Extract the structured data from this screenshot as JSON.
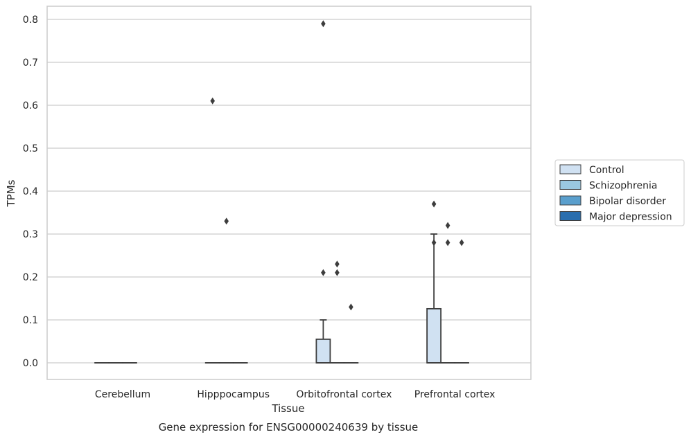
{
  "chart_data": {
    "type": "box",
    "title": "",
    "caption": "Gene expression for ENSG00000240639 by tissue",
    "xlabel": "Tissue",
    "ylabel": "TPMs",
    "categories": [
      "Cerebellum",
      "Hipppocampus",
      "Orbitofrontal cortex",
      "Prefrontal cortex"
    ],
    "ylim": [
      -0.04,
      0.83
    ],
    "yticks": [
      "0.0",
      "0.1",
      "0.2",
      "0.3",
      "0.4",
      "0.5",
      "0.6",
      "0.7",
      "0.8"
    ],
    "grid": true,
    "legend_position": "right",
    "series": [
      {
        "name": "Control",
        "color": "#d0e1f2",
        "boxes": [
          {
            "category": "Cerebellum",
            "q1": 0,
            "median": 0,
            "q3": 0,
            "whisker_low": 0,
            "whisker_high": 0,
            "outliers": []
          },
          {
            "category": "Hipppocampus",
            "q1": 0,
            "median": 0,
            "q3": 0,
            "whisker_low": 0,
            "whisker_high": 0,
            "outliers": [
              0.61
            ]
          },
          {
            "category": "Orbitofrontal cortex",
            "q1": 0,
            "median": 0,
            "q3": 0.055,
            "whisker_low": 0,
            "whisker_high": 0.1,
            "outliers": [
              0.79,
              0.21
            ]
          },
          {
            "category": "Prefrontal cortex",
            "q1": 0,
            "median": 0,
            "q3": 0.126,
            "whisker_low": 0,
            "whisker_high": 0.3,
            "outliers": [
              0.37,
              0.28
            ]
          }
        ]
      },
      {
        "name": "Schizophrenia",
        "color": "#9ac8e0",
        "boxes": [
          {
            "category": "Cerebellum",
            "q1": 0,
            "median": 0,
            "q3": 0,
            "whisker_low": 0,
            "whisker_high": 0,
            "outliers": []
          },
          {
            "category": "Hipppocampus",
            "q1": 0,
            "median": 0,
            "q3": 0,
            "whisker_low": 0,
            "whisker_high": 0,
            "outliers": [
              0.33
            ]
          },
          {
            "category": "Orbitofrontal cortex",
            "q1": 0,
            "median": 0,
            "q3": 0,
            "whisker_low": 0,
            "whisker_high": 0,
            "outliers": [
              0.23,
              0.21
            ]
          },
          {
            "category": "Prefrontal cortex",
            "q1": 0,
            "median": 0,
            "q3": 0,
            "whisker_low": 0,
            "whisker_high": 0,
            "outliers": [
              0.32,
              0.28
            ]
          }
        ]
      },
      {
        "name": "Bipolar disorder",
        "color": "#5a9fcd",
        "boxes": [
          {
            "category": "Cerebellum",
            "q1": 0,
            "median": 0,
            "q3": 0,
            "whisker_low": 0,
            "whisker_high": 0,
            "outliers": []
          },
          {
            "category": "Hipppocampus",
            "q1": 0,
            "median": 0,
            "q3": 0,
            "whisker_low": 0,
            "whisker_high": 0,
            "outliers": []
          },
          {
            "category": "Orbitofrontal cortex",
            "q1": 0,
            "median": 0,
            "q3": 0,
            "whisker_low": 0,
            "whisker_high": 0,
            "outliers": [
              0.13
            ]
          },
          {
            "category": "Prefrontal cortex",
            "q1": 0,
            "median": 0,
            "q3": 0,
            "whisker_low": 0,
            "whisker_high": 0,
            "outliers": [
              0.28
            ]
          }
        ]
      },
      {
        "name": "Major depression",
        "color": "#2a6eae",
        "boxes": []
      }
    ]
  }
}
